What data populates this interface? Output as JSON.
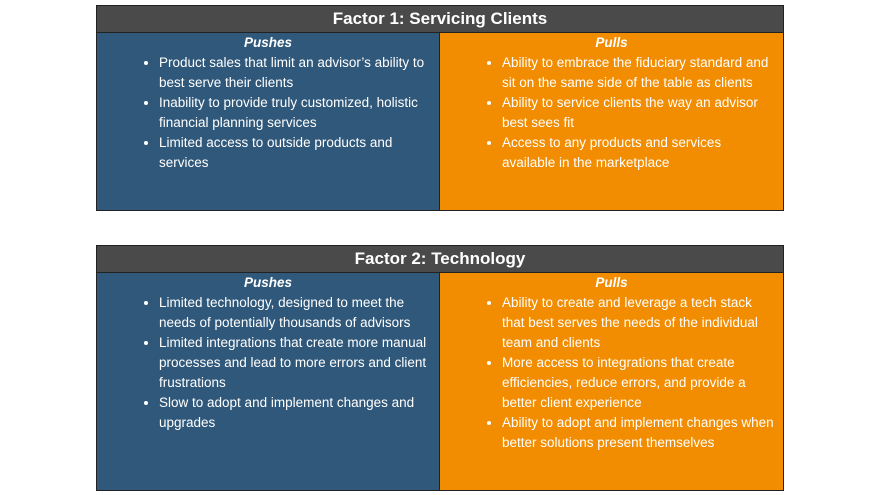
{
  "tables": [
    {
      "title": "Factor 1: Servicing Clients",
      "pushes": {
        "heading": "Pushes",
        "items": [
          "Product sales that limit an advisor’s ability to best serve their clients",
          "Inability to provide truly customized, holistic financial planning services",
          "Limited access to outside products and services"
        ]
      },
      "pulls": {
        "heading": "Pulls",
        "items": [
          "Ability to embrace the fiduciary standard and sit on the same side of the table as clients",
          "Ability to service clients the way an advisor best sees fit",
          "Access to any products and services available in the marketplace"
        ]
      }
    },
    {
      "title": "Factor 2: Technology",
      "pushes": {
        "heading": "Pushes",
        "items": [
          "Limited technology, designed to meet the needs of potentially thousands of advisors",
          "Limited integrations that create more manual processes and lead to more errors and client frustrations",
          "Slow to adopt and implement changes and upgrades"
        ]
      },
      "pulls": {
        "heading": "Pulls",
        "items": [
          "Ability to create and leverage a tech stack that best serves the needs of the individual team and clients",
          "More access to integrations that create efficiencies, reduce errors, and provide a better client experience",
          "Ability to adopt and implement changes when better solutions present themselves"
        ]
      }
    }
  ]
}
